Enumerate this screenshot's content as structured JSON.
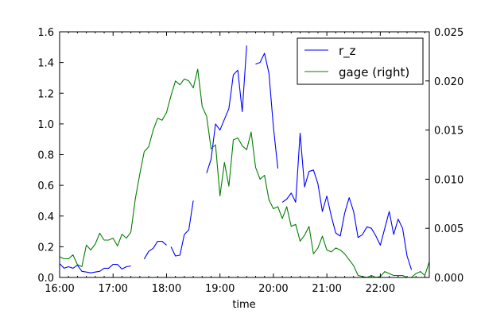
{
  "chart_data": {
    "type": "line",
    "title": "",
    "xlabel": "time",
    "ylabel": "",
    "ylabel_right": "",
    "x_unit": "minutes since 16:00",
    "xlim": [
      0,
      415
    ],
    "ylim": [
      0,
      1.6
    ],
    "ylim_right": [
      0,
      0.025
    ],
    "x_ticks": [
      {
        "value": 0,
        "label": "16:00"
      },
      {
        "value": 60,
        "label": "17:00"
      },
      {
        "value": 120,
        "label": "18:00"
      },
      {
        "value": 180,
        "label": "19:00"
      },
      {
        "value": 240,
        "label": "20:00"
      },
      {
        "value": 300,
        "label": "21:00"
      },
      {
        "value": 360,
        "label": "22:00"
      }
    ],
    "y_ticks_left": [
      "0.0",
      "0.2",
      "0.4",
      "0.6",
      "0.8",
      "1.0",
      "1.2",
      "1.4",
      "1.6"
    ],
    "y_ticks_left_values": [
      0,
      0.2,
      0.4,
      0.6,
      0.8,
      1.0,
      1.2,
      1.4,
      1.6
    ],
    "y_ticks_right": [
      "0.000",
      "0.005",
      "0.010",
      "0.015",
      "0.020",
      "0.025"
    ],
    "y_ticks_right_values": [
      0,
      0.005,
      0.01,
      0.015,
      0.02,
      0.025
    ],
    "legend": {
      "placement": "top-right",
      "entries": [
        "r_z",
        "gage (right)"
      ]
    },
    "series": [
      {
        "name": "r_z",
        "axis": "left",
        "color": "#0000ff",
        "segments": [
          {
            "x": [
              0,
              5,
              10,
              15,
              20,
              25,
              30,
              35,
              40,
              45,
              50,
              55,
              60,
              65,
              70,
              75,
              80
            ],
            "y": [
              0.09,
              0.06,
              0.07,
              0.06,
              0.08,
              0.04,
              0.035,
              0.03,
              0.035,
              0.04,
              0.06,
              0.06,
              0.085,
              0.085,
              0.055,
              0.07,
              0.075
            ]
          },
          {
            "x": [
              95,
              100,
              105,
              110,
              115,
              120
            ],
            "y": [
              0.12,
              0.17,
              0.19,
              0.235,
              0.235,
              0.21
            ]
          },
          {
            "x": [
              125,
              130,
              135,
              140,
              145,
              150
            ],
            "y": [
              0.2,
              0.14,
              0.145,
              0.28,
              0.31,
              0.5
            ]
          },
          {
            "x": [
              165,
              170,
              175,
              180,
              185,
              190,
              195,
              200,
              205,
              210
            ],
            "y": [
              0.68,
              0.77,
              1.0,
              0.96,
              1.03,
              1.1,
              1.32,
              1.35,
              1.08,
              1.51
            ]
          },
          {
            "x": [
              220,
              225,
              230,
              235,
              240,
              245
            ],
            "y": [
              1.39,
              1.4,
              1.46,
              1.33,
              0.98,
              0.71
            ]
          },
          {
            "x": [
              250,
              255,
              260,
              265,
              270,
              275,
              280,
              285,
              290,
              295,
              300,
              305,
              310,
              315,
              320,
              325,
              330,
              335,
              340,
              345,
              350,
              355,
              360,
              365,
              370,
              375,
              380,
              385,
              390,
              395
            ],
            "y": [
              0.49,
              0.51,
              0.55,
              0.49,
              0.94,
              0.59,
              0.69,
              0.7,
              0.61,
              0.43,
              0.53,
              0.4,
              0.29,
              0.27,
              0.42,
              0.52,
              0.43,
              0.26,
              0.28,
              0.33,
              0.32,
              0.27,
              0.21,
              0.32,
              0.43,
              0.28,
              0.38,
              0.32,
              0.14,
              0.05
            ]
          },
          {
            "x": [
              400
            ],
            "y": [
              0.05
            ]
          }
        ]
      },
      {
        "name": "gage (right)",
        "axis": "right",
        "color": "#008000",
        "segments": [
          {
            "x": [
              0,
              5,
              10,
              15,
              20,
              25,
              30,
              35,
              40,
              45,
              50,
              55,
              60,
              65,
              70,
              75,
              80,
              85,
              90,
              95,
              100,
              105,
              110,
              115,
              120,
              125,
              130,
              135,
              140,
              145,
              150,
              155,
              160,
              165,
              170,
              175,
              180,
              185,
              190,
              195,
              200,
              205,
              210,
              215,
              220,
              225,
              230,
              235,
              240,
              245,
              250,
              255,
              260,
              265,
              270,
              275,
              280,
              285,
              290,
              295,
              300,
              305,
              310,
              315,
              320,
              325,
              330,
              335,
              340,
              345,
              350,
              355,
              360,
              365,
              370,
              375,
              380,
              385,
              390,
              395,
              400,
              405,
              410,
              415
            ],
            "y": [
              0.0021,
              0.0019,
              0.0019,
              0.0023,
              0.0013,
              0.0011,
              0.0033,
              0.0028,
              0.0034,
              0.0045,
              0.0038,
              0.0038,
              0.004,
              0.0032,
              0.0044,
              0.004,
              0.0046,
              0.008,
              0.0105,
              0.0128,
              0.0133,
              0.015,
              0.0162,
              0.016,
              0.0168,
              0.0185,
              0.02,
              0.0196,
              0.0202,
              0.02,
              0.0193,
              0.0212,
              0.0174,
              0.0164,
              0.0131,
              0.0135,
              0.0083,
              0.0117,
              0.0093,
              0.014,
              0.0142,
              0.0134,
              0.013,
              0.0148,
              0.0112,
              0.01,
              0.0104,
              0.0079,
              0.007,
              0.0072,
              0.006,
              0.0072,
              0.0052,
              0.0054,
              0.0037,
              0.0043,
              0.0052,
              0.0024,
              0.003,
              0.0042,
              0.0028,
              0.0026,
              0.003,
              0.0028,
              0.0024,
              0.0018,
              0.0012,
              0.0002,
              0.0001,
              0.0,
              0.0002,
              0.0,
              0.0001,
              0.0006,
              0.0004,
              0.0002,
              0.0002,
              0.0002,
              0.0,
              0.0,
              0.0004,
              0.0006,
              0.0002,
              0.0016
            ]
          }
        ]
      }
    ]
  }
}
